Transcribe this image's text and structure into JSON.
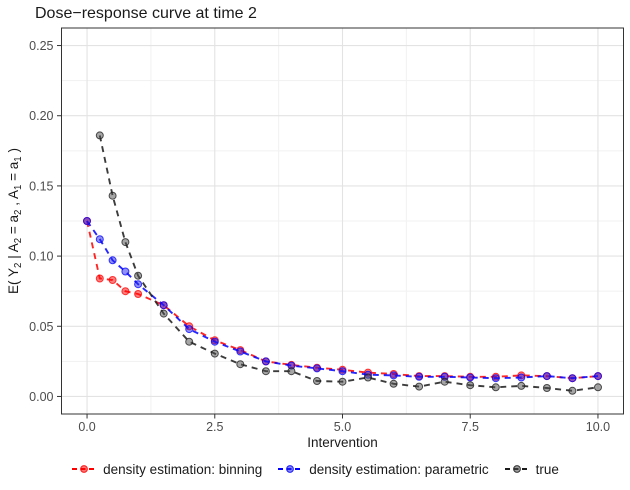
{
  "chart_data": {
    "type": "line",
    "title": "Dose−response curve at time 2",
    "xlabel": "Intervention",
    "ylabel": "E( Y2 | A2 = a2 , A1 = a1 )",
    "ylabel_tokens": [
      {
        "t": "E( Y"
      },
      {
        "t": "2",
        "sub": true
      },
      {
        "t": " | A"
      },
      {
        "t": "2",
        "sub": true
      },
      {
        "t": " = a"
      },
      {
        "t": "2",
        "sub": true
      },
      {
        "t": " , A"
      },
      {
        "t": "1",
        "sub": true
      },
      {
        "t": " = a"
      },
      {
        "t": "1",
        "sub": true
      },
      {
        "t": " )"
      }
    ],
    "x": [
      0,
      0.25,
      0.5,
      0.75,
      1,
      1.5,
      2,
      2.5,
      3,
      3.5,
      4,
      4.5,
      5,
      5.5,
      6,
      6.5,
      7,
      7.5,
      8,
      8.5,
      9,
      9.5,
      10
    ],
    "series": [
      {
        "name": "density estimation: binning",
        "color": "#FF0000",
        "point_color": "#FF0000",
        "values": [
          0.125,
          0.084,
          0.083,
          0.075,
          0.073,
          0.065,
          0.05,
          0.04,
          0.033,
          0.025,
          0.0225,
          0.0205,
          0.019,
          0.017,
          0.016,
          0.0145,
          0.0145,
          0.014,
          0.014,
          0.015,
          0.0145,
          0.013,
          0.0145
        ]
      },
      {
        "name": "density estimation: parametric",
        "color": "#0000FF",
        "point_color": "#2222EE",
        "values": [
          0.125,
          0.112,
          0.097,
          0.089,
          0.08,
          0.065,
          0.048,
          0.039,
          0.032,
          0.025,
          0.022,
          0.02,
          0.018,
          0.0155,
          0.015,
          0.014,
          0.014,
          0.0135,
          0.013,
          0.0135,
          0.0145,
          0.013,
          0.0145
        ]
      },
      {
        "name": "true",
        "color": "#1A1A1A",
        "point_color": "#4D4D4D",
        "values": [
          null,
          0.186,
          0.143,
          0.11,
          0.086,
          0.059,
          0.039,
          0.0305,
          0.023,
          0.018,
          0.018,
          0.011,
          0.0105,
          0.0135,
          0.009,
          0.007,
          0.0105,
          0.008,
          0.0065,
          0.0075,
          0.006,
          0.004,
          0.0065
        ]
      }
    ],
    "x_ticks": {
      "values": [
        0,
        2.5,
        5,
        7.5,
        10
      ],
      "labels": [
        "0.0",
        "2.5",
        "5.0",
        "7.5",
        "10.0"
      ]
    },
    "y_ticks": {
      "values": [
        0,
        0.05,
        0.1,
        0.15,
        0.2,
        0.25
      ],
      "labels": [
        "0.00",
        "0.05",
        "0.10",
        "0.15",
        "0.20",
        "0.25"
      ]
    },
    "x_minor": [
      1.25,
      3.75,
      6.25,
      8.75
    ],
    "y_minor": [
      0.025,
      0.075,
      0.125,
      0.175,
      0.225
    ],
    "xlim": [
      -0.5,
      10.5
    ],
    "ylim": [
      -0.0125,
      0.2625
    ],
    "grid": true,
    "legend_position": "bottom",
    "style": {
      "grid_major_color": "#E3E3E3",
      "grid_minor_color": "#F1F1F1",
      "panel_border_color": "#333333",
      "tick_color": "#333333",
      "tick_label_color": "#4D4D4D",
      "line_dash": "6 5"
    }
  }
}
